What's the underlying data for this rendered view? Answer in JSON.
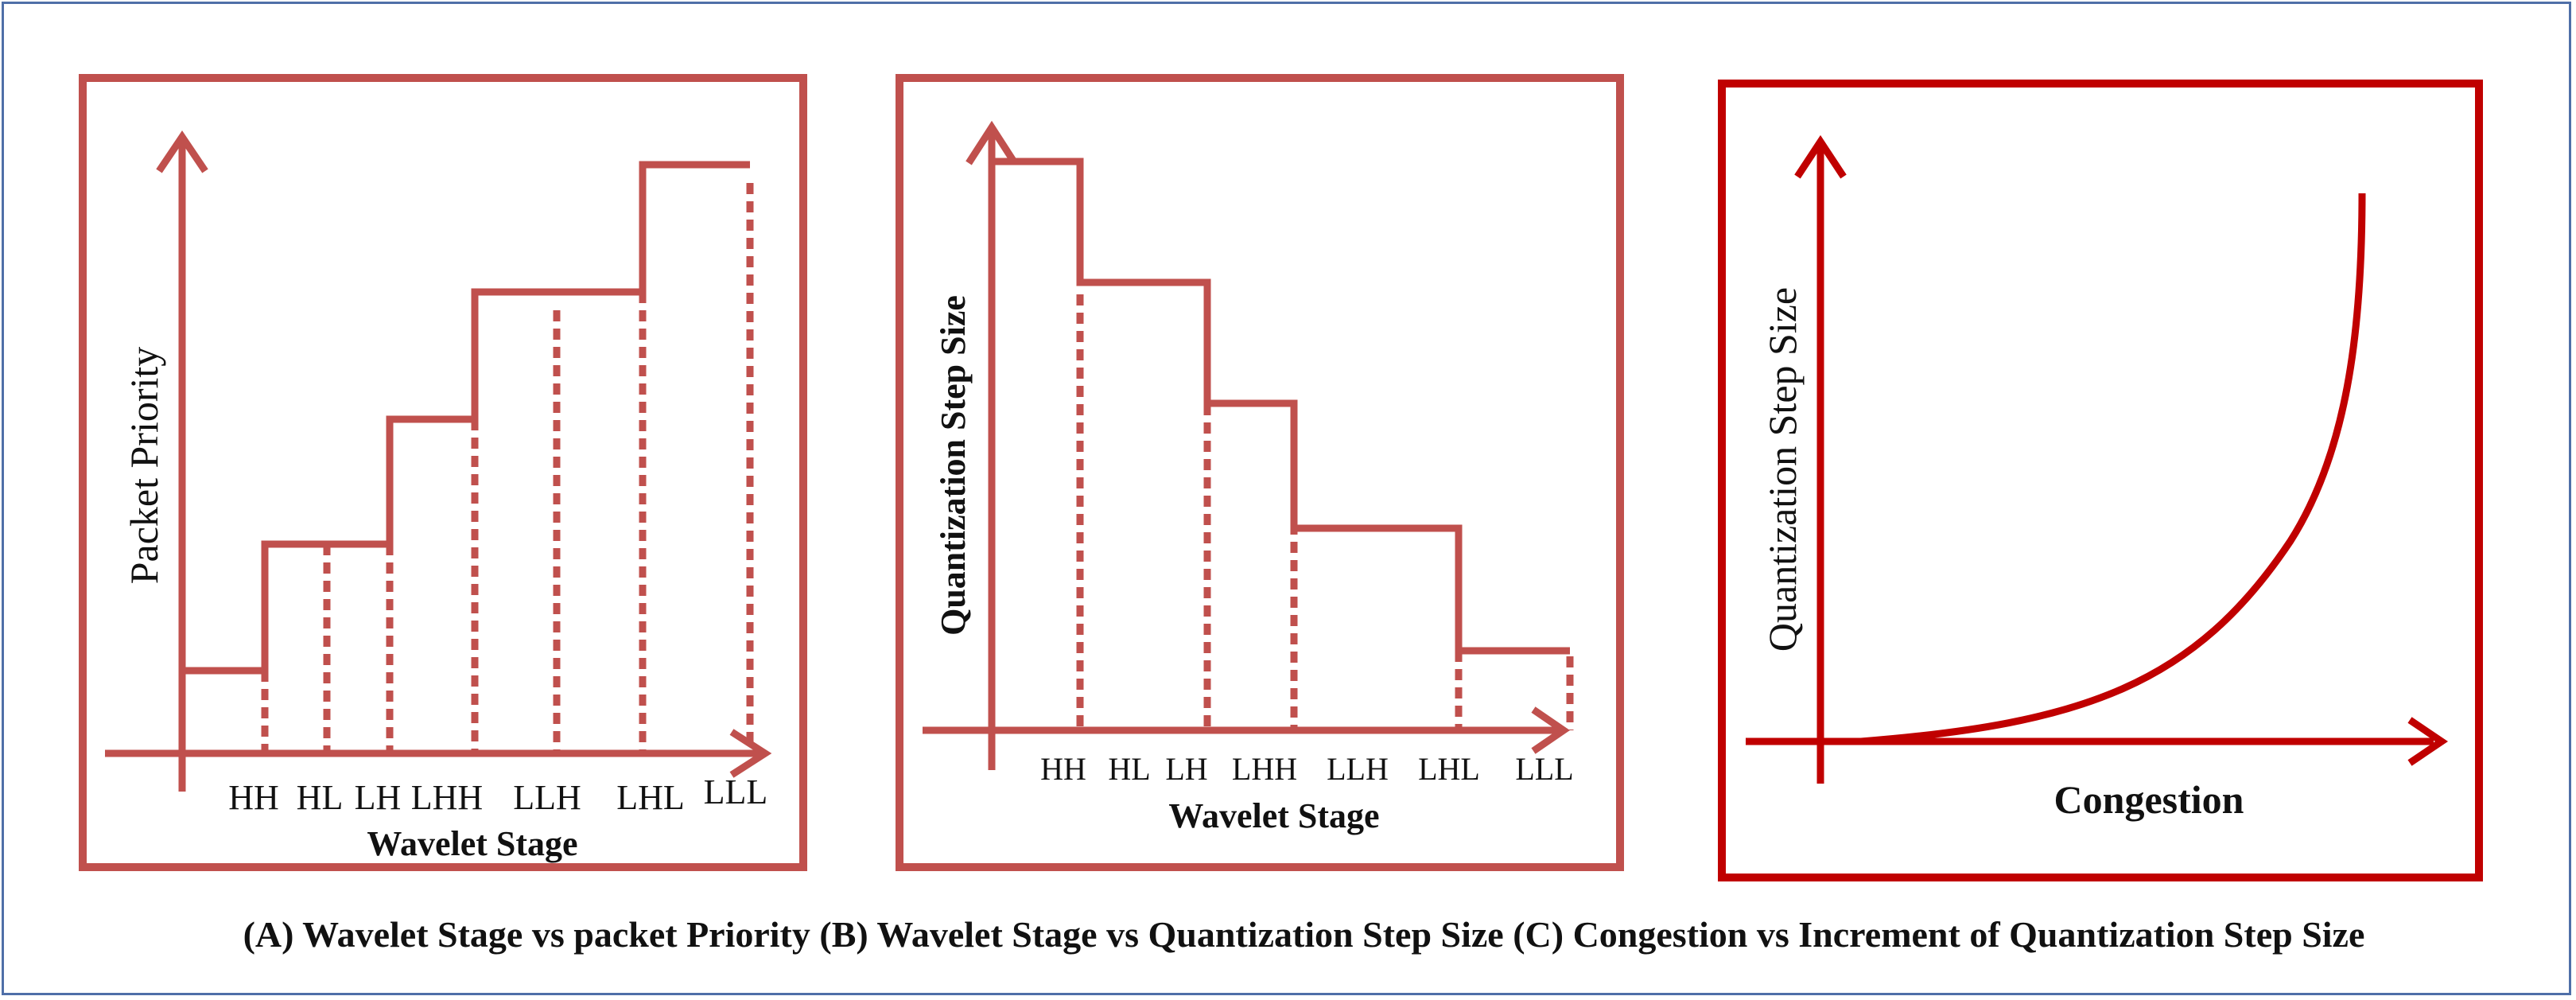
{
  "panels": [
    {
      "id": "A",
      "y_axis_label": "Packet Priority",
      "x_axis_label": "Wavelet Stage",
      "x_tick_labels": [
        "HH",
        "HL",
        "LH",
        "LHH",
        "LLH",
        "LHL",
        "LLL"
      ],
      "chart_data": {
        "type": "line",
        "shape": "step-up",
        "categories": [
          "HH",
          "HL",
          "LH",
          "LHH",
          "LLH",
          "LHL",
          "LLL"
        ],
        "relative_levels": [
          1,
          2,
          2,
          3,
          4,
          4,
          5
        ],
        "xlabel": "Wavelet Stage",
        "ylabel": "Packet Priority"
      }
    },
    {
      "id": "B",
      "y_axis_label": "Quantization Step Size",
      "x_axis_label": "Wavelet Stage",
      "x_tick_labels": [
        "HH",
        "HL",
        "LH",
        "LHH",
        "LLH",
        "LHL",
        "LLL"
      ],
      "chart_data": {
        "type": "line",
        "shape": "step-down",
        "categories": [
          "HH",
          "HL",
          "LH",
          "LHH",
          "LLH",
          "LHL",
          "LLL"
        ],
        "relative_levels": [
          5,
          4,
          3,
          2,
          2,
          1,
          1
        ],
        "xlabel": "Wavelet Stage",
        "ylabel": "Quantization Step Size"
      }
    },
    {
      "id": "C",
      "y_axis_label": "Quantization Step Size",
      "x_axis_label": "Congestion",
      "chart_data": {
        "type": "line",
        "shape": "exponential-increase",
        "xlabel": "Congestion",
        "ylabel": "Quantization Step Size"
      }
    }
  ],
  "caption": "(A) Wavelet Stage vs packet Priority  (B) Wavelet Stage vs Quantization Step Size (C) Congestion vs Increment of Quantization Step Size",
  "colors": {
    "panel_ab": "#c0504d",
    "panel_c": "#c00000",
    "frame": "#4f6fa8"
  }
}
